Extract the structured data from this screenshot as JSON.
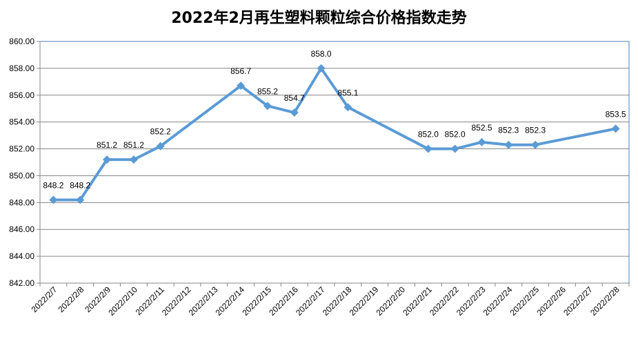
{
  "chart_data": {
    "type": "line",
    "title": "2022年2月再生塑料颗粒综合价格指数走势",
    "xlabel": "",
    "ylabel": "",
    "ylim": [
      842.0,
      860.0
    ],
    "y_ticks": [
      "842.00",
      "844.00",
      "846.00",
      "848.00",
      "850.00",
      "852.00",
      "854.00",
      "856.00",
      "858.00",
      "860.00"
    ],
    "categories": [
      "2022/2/7",
      "2022/2/8",
      "2022/2/9",
      "2022/2/10",
      "2022/2/11",
      "2022/2/12",
      "2022/2/13",
      "2022/2/14",
      "2022/2/15",
      "2022/2/16",
      "2022/2/17",
      "2022/2/18",
      "2022/2/19",
      "2022/2/20",
      "2022/2/21",
      "2022/2/22",
      "2022/2/23",
      "2022/2/24",
      "2022/2/25",
      "2022/2/26",
      "2022/2/27",
      "2022/2/28"
    ],
    "series": [
      {
        "values": [
          848.2,
          848.2,
          851.2,
          851.2,
          852.2,
          null,
          null,
          856.7,
          855.2,
          854.7,
          858.0,
          855.1,
          null,
          null,
          852.0,
          852.0,
          852.5,
          852.3,
          852.3,
          null,
          null,
          853.5
        ],
        "labels": [
          "848.2",
          "848.2",
          "851.2",
          "851.2",
          "852.2",
          null,
          null,
          "856.7",
          "855.2",
          "854.7",
          "858.0",
          "855.1",
          null,
          null,
          "852.0",
          "852.0",
          "852.5",
          "852.3",
          "852.3",
          null,
          null,
          "853.5"
        ]
      }
    ],
    "grid": true,
    "legend": "none",
    "colors": {
      "line": "#5B9BD5",
      "grid": "#868686",
      "axis": "#868686",
      "border": "#4A7EBB"
    }
  }
}
